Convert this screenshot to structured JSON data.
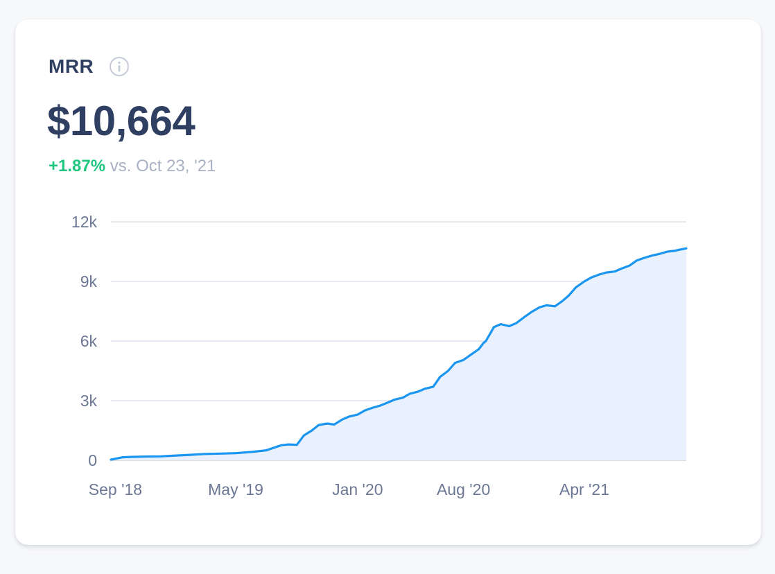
{
  "metric": {
    "name": "MRR",
    "info_icon": "info-icon",
    "value": "$10,664",
    "change_percent": "+1.87%",
    "change_suffix": " vs. Oct 23, '21"
  },
  "colors": {
    "title": "#2f3f61",
    "positive": "#1fc77e",
    "muted": "#a9b1c4",
    "line": "#1a95f0",
    "area": "#e8f1fd",
    "grid": "#dde2ea"
  },
  "chart_data": {
    "type": "area",
    "title": "",
    "xlabel": "",
    "ylabel": "",
    "x_range": [
      "2018-08-23",
      "2021-10-23"
    ],
    "ylim": [
      0,
      12000
    ],
    "y_ticks": [
      0,
      3000,
      6000,
      9000,
      12000
    ],
    "y_tick_labels": [
      "0",
      "3k",
      "6k",
      "9k",
      "12k"
    ],
    "x_ticks": [
      "2018-09-01",
      "2019-05-01",
      "2020-01-01",
      "2020-08-01",
      "2021-04-01"
    ],
    "x_tick_labels": [
      "Sep '18",
      "May '19",
      "Jan '20",
      "Aug '20",
      "Apr '21"
    ],
    "grid": true,
    "legend": "none",
    "series": [
      {
        "x": [
          "2018-08-23",
          "2018-09-01",
          "2018-09-15",
          "2018-10-01",
          "2018-11-01",
          "2018-12-01",
          "2019-01-01",
          "2019-02-01",
          "2019-03-01",
          "2019-04-01",
          "2019-05-01",
          "2019-06-01",
          "2019-07-01",
          "2019-08-01",
          "2019-08-15",
          "2019-09-01",
          "2019-09-15",
          "2019-10-01",
          "2019-10-15",
          "2019-11-01",
          "2019-11-15",
          "2019-12-01",
          "2019-12-15",
          "2020-01-01",
          "2020-01-15",
          "2020-02-01",
          "2020-02-15",
          "2020-03-01",
          "2020-03-15",
          "2020-04-01",
          "2020-04-15",
          "2020-05-01",
          "2020-05-15",
          "2020-06-01",
          "2020-06-15",
          "2020-07-01",
          "2020-07-15",
          "2020-08-01",
          "2020-08-15",
          "2020-09-01",
          "2020-09-10",
          "2020-09-15",
          "2020-10-01",
          "2020-10-15",
          "2020-11-01",
          "2020-11-15",
          "2020-12-01",
          "2020-12-15",
          "2021-01-01",
          "2021-01-15",
          "2021-02-01",
          "2021-02-15",
          "2021-03-01",
          "2021-03-15",
          "2021-04-01",
          "2021-04-15",
          "2021-05-01",
          "2021-05-15",
          "2021-06-01",
          "2021-06-15",
          "2021-07-01",
          "2021-07-15",
          "2021-08-01",
          "2021-08-15",
          "2021-09-01",
          "2021-09-15",
          "2021-10-01",
          "2021-10-10",
          "2021-10-23"
        ],
        "y": [
          30,
          80,
          150,
          170,
          190,
          200,
          240,
          280,
          320,
          340,
          360,
          420,
          500,
          760,
          800,
          780,
          1250,
          1500,
          1780,
          1850,
          1800,
          2050,
          2200,
          2300,
          2500,
          2650,
          2750,
          2900,
          3050,
          3150,
          3350,
          3450,
          3600,
          3700,
          4200,
          4500,
          4900,
          5050,
          5300,
          5600,
          5900,
          6000,
          6700,
          6850,
          6750,
          6900,
          7200,
          7450,
          7700,
          7800,
          7750,
          8000,
          8300,
          8700,
          9000,
          9200,
          9350,
          9450,
          9500,
          9650,
          9800,
          10050,
          10200,
          10300,
          10400,
          10500,
          10550,
          10600,
          10664
        ]
      }
    ]
  }
}
